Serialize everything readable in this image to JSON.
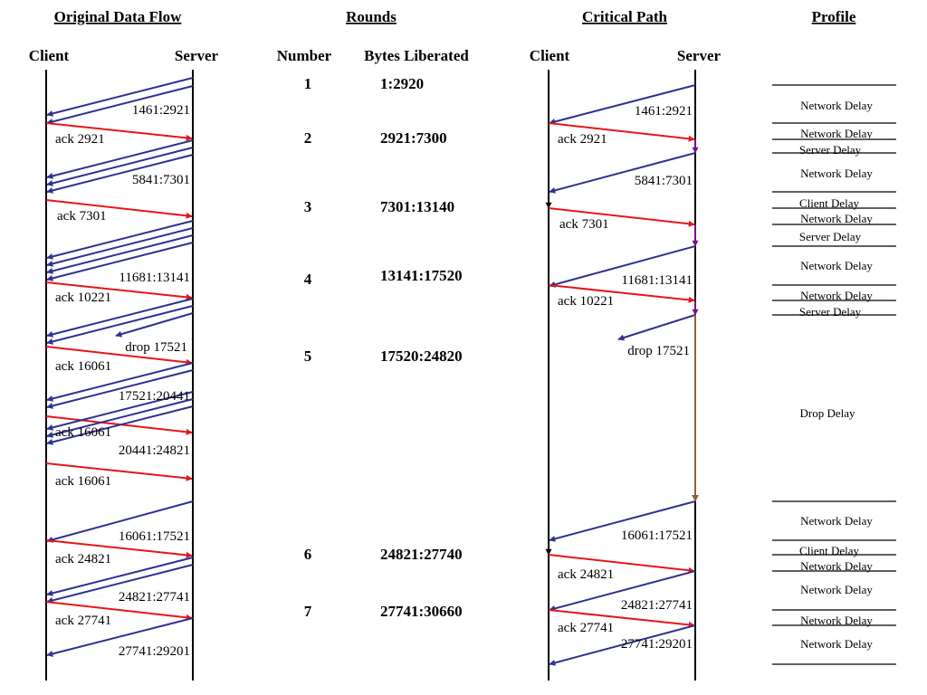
{
  "headers": {
    "original": "Original Data Flow",
    "rounds": "Rounds",
    "critical": "Critical Path",
    "profile": "Profile"
  },
  "subheaders": {
    "client_left": "Client",
    "server_left": "Server",
    "number": "Number",
    "bytes": "Bytes Liberated",
    "client_right": "Client",
    "server_right": "Server"
  },
  "rounds": [
    {
      "number": "1",
      "bytes": "1:2920"
    },
    {
      "number": "2",
      "bytes": "2921:7300"
    },
    {
      "number": "3",
      "bytes": "7301:13140"
    },
    {
      "number": "4",
      "bytes": "13141:17520"
    },
    {
      "number": "5",
      "bytes": "17520:24820"
    },
    {
      "number": "6",
      "bytes": "24821:27740"
    },
    {
      "number": "7",
      "bytes": "27741:30660"
    }
  ],
  "original_labels": [
    "1461:2921",
    "ack 2921",
    "5841:7301",
    "ack 7301",
    "11681:13141",
    "ack 10221",
    "drop 17521",
    "ack 16061",
    "17521:20441",
    "ack 16061",
    "20441:24821",
    "ack 16061",
    "16061:17521",
    "ack 24821",
    "24821:27741",
    "ack 27741",
    "27741:29201"
  ],
  "critical_labels": [
    "1461:2921",
    "ack 2921",
    "5841:7301",
    "ack 7301",
    "11681:13141",
    "ack 10221",
    "drop 17521",
    "16061:17521",
    "ack 24821",
    "24821:27741",
    "ack 27741",
    "27741:29201"
  ],
  "profile_labels": [
    "Network Delay",
    "Network Delay",
    "Server Delay",
    "Network Delay",
    "Client Delay",
    "Network Delay",
    "Server Delay",
    "Network Delay",
    "Network Delay",
    "Server Delay",
    "Drop Delay",
    "Network Delay",
    "Client Delay",
    "Network Delay",
    "Network Delay",
    "Network Delay",
    "Network Delay"
  ],
  "colors": {
    "data": "#2e3192",
    "ack": "#e8141b",
    "server_delay": "#7a1280",
    "drop_delay": "#8b6234",
    "client_delay": "#000000"
  }
}
